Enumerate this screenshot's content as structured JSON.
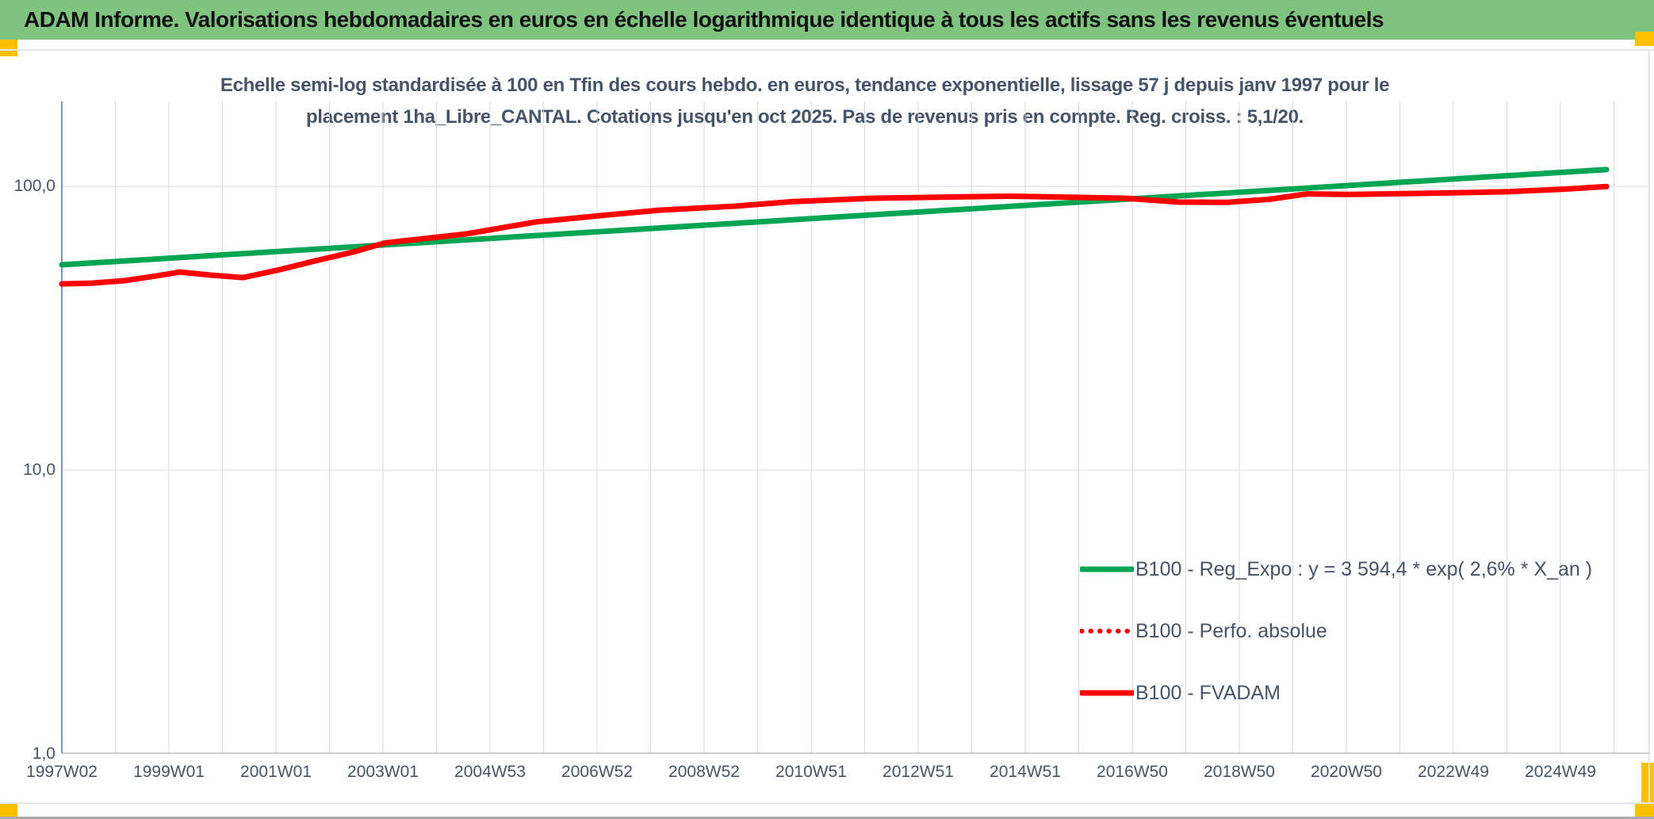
{
  "header": {
    "title": "ADAM Informe. Valorisations hebdomadaires en euros en échelle logarithmique identique à tous les actifs sans les revenus éventuels"
  },
  "chart": {
    "subtitle_line1": "Echelle semi-log standardisée à 100 en Tfin des cours hebdo. en euros, tendance exponentielle, lissage 57 j depuis janv 1997 pour le",
    "subtitle_line2": "placement 1ha_Libre_CANTAL. Cotations jusqu'en oct 2025. Pas de revenus pris en compte. Reg. croiss. : 5,1/20."
  },
  "colors": {
    "header_green": "#7EC47E",
    "accent_yellow": "#FFC000",
    "series_green": "#00A651",
    "series_red": "#FF0000",
    "gridline": "#D9D9D9",
    "x_axis_line": "#BFBFBF",
    "y_axis_line": "#4472C4",
    "text_blue_gray": "#44546A"
  },
  "chart_data": {
    "type": "line",
    "y_axis": {
      "scale": "log",
      "range": [
        1,
        200
      ],
      "ticks": [
        {
          "label": "100,0",
          "value": 100
        },
        {
          "label": "10,0",
          "value": 10
        },
        {
          "label": "1,0",
          "value": 1
        }
      ]
    },
    "x_axis": {
      "tick_labels": [
        "1997W02",
        "1999W01",
        "2001W01",
        "2003W01",
        "2004W53",
        "2006W52",
        "2008W52",
        "2010W51",
        "2012W51",
        "2014W51",
        "2016W50",
        "2018W50",
        "2020W50",
        "2022W49",
        "2024W49"
      ],
      "minor_gridline_interval": "1 year",
      "label_interval": "2 years"
    },
    "layout": {
      "x0": 78,
      "year0": 1997.04,
      "pxPerYear": 67.5,
      "pxPerLabel": 135,
      "y100": 235,
      "pxPerDecade": 358,
      "plotTop": 128,
      "plotBottom": 950,
      "plotLeft": 78,
      "plotRight": 2080,
      "minorGridCount": 30,
      "legend_position": "bottom-right-inside",
      "grid": "on"
    },
    "series": [
      {
        "name": "B100 - Reg_Expo : y = 3 594,4 * exp( 2,6% *  X_an )",
        "color": "#00A651",
        "style": "solid",
        "points": [
          [
            1997.04,
            52.9
          ],
          [
            2025.9,
            114.5
          ]
        ]
      },
      {
        "name": "B100 - Perfo. absolue",
        "color": "#FF0000",
        "style": "dotted",
        "points_same_as": "B100 - FVADAM",
        "note": "coincides with B100 - FVADAM in the plot"
      },
      {
        "name": "B100 - FVADAM",
        "color": "#FF0000",
        "style": "solid",
        "points": [
          [
            1997.04,
            45.3
          ],
          [
            1997.6,
            45.6
          ],
          [
            1998.2,
            46.5
          ],
          [
            1998.8,
            48.3
          ],
          [
            1999.25,
            49.9
          ],
          [
            1999.8,
            48.7
          ],
          [
            2000.43,
            47.7
          ],
          [
            2001.1,
            50.8
          ],
          [
            2001.7,
            54.2
          ],
          [
            2002.5,
            58.8
          ],
          [
            2003.08,
            63.2
          ],
          [
            2004.6,
            68.0
          ],
          [
            2005.9,
            74.9
          ],
          [
            2007.1,
            78.8
          ],
          [
            2008.2,
            82.4
          ],
          [
            2009.6,
            85.1
          ],
          [
            2010.7,
            88.3
          ],
          [
            2012.2,
            90.8
          ],
          [
            2013.5,
            91.6
          ],
          [
            2014.75,
            92.3
          ],
          [
            2015.8,
            91.6
          ],
          [
            2016.9,
            90.8
          ],
          [
            2017.9,
            88.0
          ],
          [
            2018.8,
            87.8
          ],
          [
            2019.6,
            90.0
          ],
          [
            2020.3,
            94.0
          ],
          [
            2021.1,
            93.6
          ],
          [
            2022.1,
            94.2
          ],
          [
            2023.1,
            94.9
          ],
          [
            2024.1,
            95.8
          ],
          [
            2025.1,
            97.7
          ],
          [
            2025.9,
            99.8
          ]
        ]
      }
    ]
  }
}
